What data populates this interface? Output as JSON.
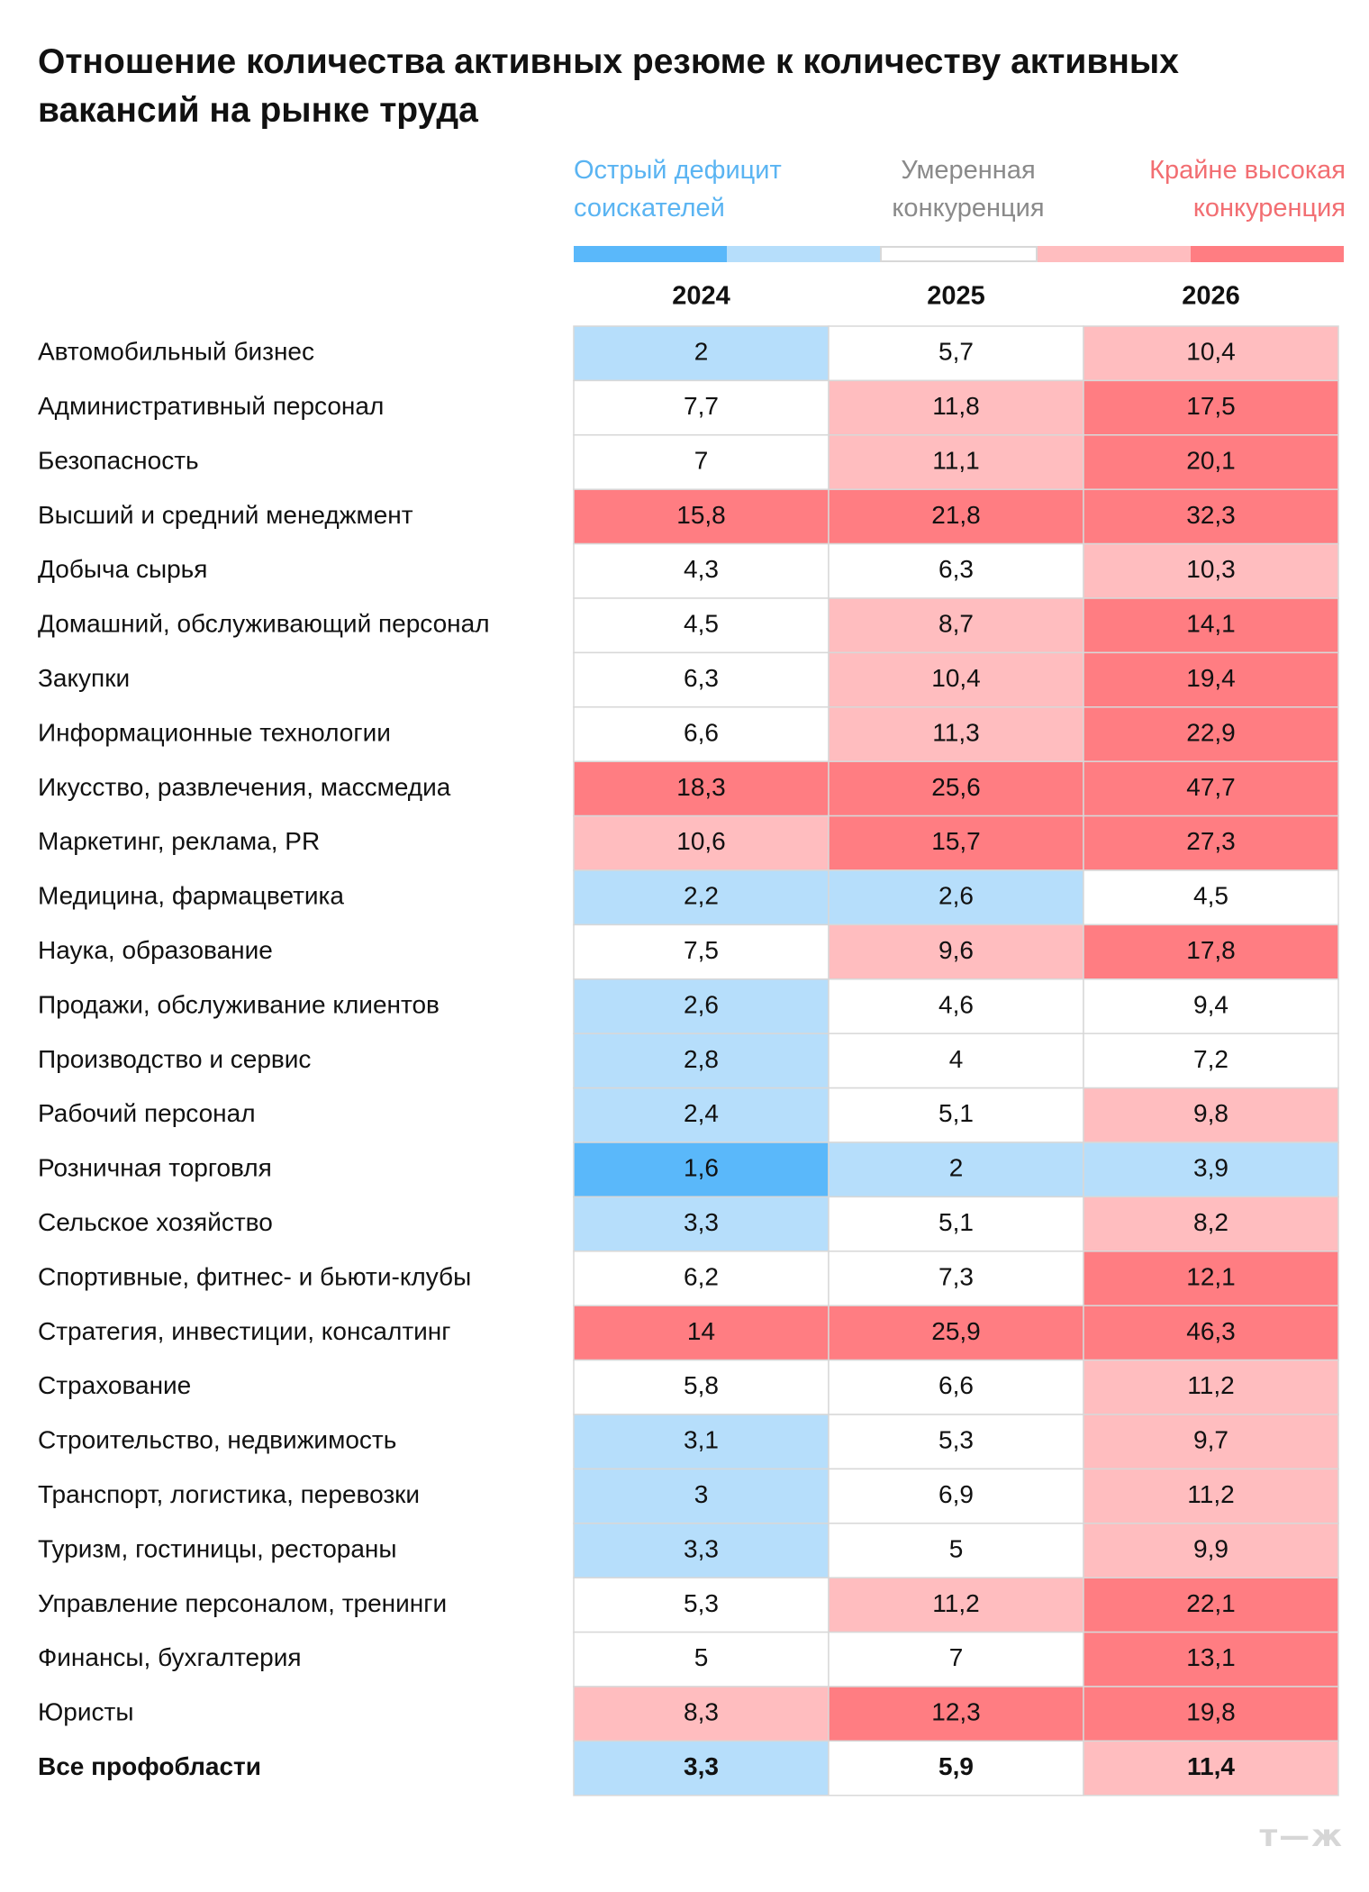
{
  "title": "Отношение количества активных резюме к количеству активных вакансий на рынке труда",
  "legend": {
    "low_line1": "Острый дефицит",
    "low_line2": "соискателей",
    "mid_line1": "Умеренная",
    "mid_line2": "конкуренция",
    "high_line1": "Крайне высокая",
    "high_line2": "конкуренция",
    "scale_colors": [
      "#5ab8fa",
      "#b6defb",
      "#ffffff",
      "#ffbdbf",
      "#ff7d82"
    ],
    "border_color": "#d8d8d8"
  },
  "logo": "т—ж",
  "chart_data": {
    "type": "heatmap",
    "columns": [
      "2024",
      "2025",
      "2026"
    ],
    "rows": [
      "Автомобильный бизнес",
      "Административный персонал",
      "Безопасность",
      "Высший и средний менеджмент",
      "Добыча сырья",
      "Домашний, обслуживающий персонал",
      "Закупки",
      "Информационные технологии",
      "Икусство, развлечения, массмедиа",
      "Маркетинг, реклама, PR",
      "Медицина, фармацветика",
      "Наука, образование",
      "Продажи, обслуживание клиентов",
      "Производство и сервис",
      "Рабочий персонал",
      "Розничная торговля",
      "Сельское хозяйство",
      "Спортивные, фитнес- и бьюти-клубы",
      "Стратегия, инвестиции, консалтинг",
      "Страхование",
      "Строительство, недвижимость",
      "Транспорт, логистика, перевозки",
      "Туризм, гостиницы, рестораны",
      "Управление персоналом, тренинги",
      "Финансы, бухгалтерия",
      "Юристы",
      "Все профобласти"
    ],
    "values": [
      [
        "2",
        "5,7",
        "10,4"
      ],
      [
        "7,7",
        "11,8",
        "17,5"
      ],
      [
        "7",
        "11,1",
        "20,1"
      ],
      [
        "15,8",
        "21,8",
        "32,3"
      ],
      [
        "4,3",
        "6,3",
        "10,3"
      ],
      [
        "4,5",
        "8,7",
        "14,1"
      ],
      [
        "6,3",
        "10,4",
        "19,4"
      ],
      [
        "6,6",
        "11,3",
        "22,9"
      ],
      [
        "18,3",
        "25,6",
        "47,7"
      ],
      [
        "10,6",
        "15,7",
        "27,3"
      ],
      [
        "2,2",
        "2,6",
        "4,5"
      ],
      [
        "7,5",
        "9,6",
        "17,8"
      ],
      [
        "2,6",
        "4,6",
        "9,4"
      ],
      [
        "2,8",
        "4",
        "7,2"
      ],
      [
        "2,4",
        "5,1",
        "9,8"
      ],
      [
        "1,6",
        "2",
        "3,9"
      ],
      [
        "3,3",
        "5,1",
        "8,2"
      ],
      [
        "6,2",
        "7,3",
        "12,1"
      ],
      [
        "14",
        "25,9",
        "46,3"
      ],
      [
        "5,8",
        "6,6",
        "11,2"
      ],
      [
        "3,1",
        "5,3",
        "9,7"
      ],
      [
        "3",
        "6,9",
        "11,2"
      ],
      [
        "3,3",
        "5",
        "9,9"
      ],
      [
        "5,3",
        "11,2",
        "22,1"
      ],
      [
        "5",
        "7",
        "13,1"
      ],
      [
        "8,3",
        "12,3",
        "19,8"
      ],
      [
        "3,3",
        "5,9",
        "11,4"
      ]
    ],
    "levels": [
      [
        1,
        2,
        3
      ],
      [
        2,
        3,
        4
      ],
      [
        2,
        3,
        4
      ],
      [
        4,
        4,
        4
      ],
      [
        2,
        2,
        3
      ],
      [
        2,
        3,
        4
      ],
      [
        2,
        3,
        4
      ],
      [
        2,
        3,
        4
      ],
      [
        4,
        4,
        4
      ],
      [
        3,
        4,
        4
      ],
      [
        1,
        1,
        2
      ],
      [
        2,
        3,
        4
      ],
      [
        1,
        2,
        2
      ],
      [
        1,
        2,
        2
      ],
      [
        1,
        2,
        3
      ],
      [
        0,
        1,
        1
      ],
      [
        1,
        2,
        3
      ],
      [
        2,
        2,
        4
      ],
      [
        4,
        4,
        4
      ],
      [
        2,
        2,
        3
      ],
      [
        1,
        2,
        3
      ],
      [
        1,
        2,
        3
      ],
      [
        1,
        2,
        3
      ],
      [
        2,
        3,
        4
      ],
      [
        2,
        2,
        4
      ],
      [
        3,
        4,
        4
      ],
      [
        1,
        2,
        3
      ]
    ],
    "total_row_bold": true
  }
}
